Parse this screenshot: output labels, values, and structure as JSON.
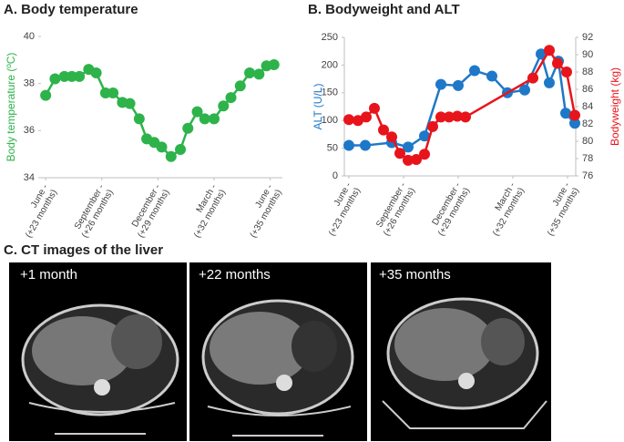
{
  "chart_data": [
    {
      "type": "line",
      "title": "A. Body temperature",
      "y_label": "Body temperature (ºC)",
      "xlim": [
        -0.25,
        12.65
      ],
      "xticks": [
        {
          "value": 0,
          "label": "June -\n(+23 months)"
        },
        {
          "value": 3,
          "label": "September -\n(+26 months)"
        },
        {
          "value": 6,
          "label": "December -\n(+29 months)"
        },
        {
          "value": 9,
          "label": "March -\n(+32 months)"
        },
        {
          "value": 12,
          "label": "June -\n(+35 months)"
        }
      ],
      "ylim": [
        34,
        40
      ],
      "yticks": [
        34,
        36,
        38,
        40
      ],
      "series": [
        {
          "color": "#2db34a",
          "x": [
            0,
            0.5,
            1.0,
            1.4,
            1.8,
            2.3,
            2.7,
            3.2,
            3.6,
            4.1,
            4.5,
            5.0,
            5.4,
            5.8,
            6.2,
            6.7,
            7.2,
            7.6,
            8.1,
            8.5,
            9.0,
            9.5,
            9.9,
            10.4,
            10.9,
            11.4,
            11.8,
            12.2
          ],
          "values": [
            37.5,
            38.2,
            38.3,
            38.3,
            38.3,
            38.6,
            38.45,
            37.6,
            37.6,
            37.2,
            37.15,
            36.5,
            35.65,
            35.5,
            35.3,
            34.9,
            35.2,
            36.1,
            36.8,
            36.5,
            36.5,
            37.05,
            37.4,
            37.9,
            38.45,
            38.4,
            38.75,
            38.8
          ]
        }
      ]
    },
    {
      "type": "line",
      "title": "B. Bodyweight and ALT",
      "y_label": "ALT (U/L)",
      "y2_label": "Bodyweight (kg)",
      "xlim": [
        -0.25,
        12.45
      ],
      "xticks": [
        {
          "value": 0,
          "label": "June -\n(+23 months)"
        },
        {
          "value": 3,
          "label": "September -\n(+26 months)"
        },
        {
          "value": 6,
          "label": "December -\n(+29 months)"
        },
        {
          "value": 9,
          "label": "March -\n(+32 months)"
        },
        {
          "value": 12,
          "label": "June -\n(+35 months)"
        }
      ],
      "ylim": [
        0,
        250
      ],
      "yticks": [
        0,
        50,
        100,
        150,
        200,
        250
      ],
      "y2lim": [
        76,
        92
      ],
      "y2ticks": [
        76,
        78,
        80,
        82,
        84,
        86,
        88,
        90,
        92
      ],
      "series": [
        {
          "color": "#1e78c8",
          "x": [
            0,
            0.9,
            2.35,
            3.25,
            4.15,
            5.05,
            6.0,
            6.9,
            7.85,
            8.7,
            9.65,
            10.55,
            11.0,
            11.5,
            11.9,
            12.4
          ],
          "values": [
            55,
            55,
            60,
            52,
            72,
            165,
            163,
            190,
            180,
            150,
            155,
            220,
            168,
            207,
            113,
            95
          ]
        },
        {
          "color": "#e8141b",
          "axis": "y2",
          "x": [
            0,
            0.5,
            0.95,
            1.4,
            1.9,
            2.35,
            2.8,
            3.25,
            3.7,
            4.15,
            4.6,
            5.05,
            5.5,
            5.95,
            6.4,
            10.1,
            11.0,
            11.45,
            11.95,
            12.4
          ],
          "values": [
            82.5,
            82.4,
            82.8,
            83.8,
            81.3,
            80.5,
            78.6,
            77.8,
            77.9,
            78.5,
            81.7,
            82.8,
            82.8,
            82.9,
            82.8,
            87.3,
            90.5,
            89,
            88,
            83
          ]
        }
      ]
    }
  ],
  "ct_images": {
    "title": "C. CT images of the liver",
    "panels": [
      {
        "label": "+1 month"
      },
      {
        "label": "+22 months"
      },
      {
        "label": "+35 months"
      }
    ]
  }
}
